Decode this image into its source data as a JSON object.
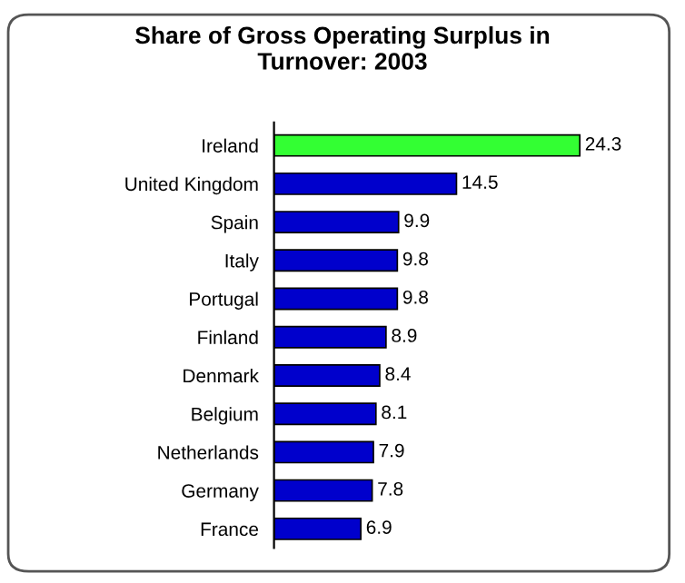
{
  "chart_data": {
    "type": "bar",
    "orientation": "horizontal",
    "title": "Share of Gross Operating Surplus in\nTurnover: 2003",
    "categories": [
      "Ireland",
      "United Kingdom",
      "Spain",
      "Italy",
      "Portugal",
      "Finland",
      "Denmark",
      "Belgium",
      "Netherlands",
      "Germany",
      "France"
    ],
    "values": [
      24.3,
      14.5,
      9.9,
      9.8,
      9.8,
      8.9,
      8.4,
      8.1,
      7.9,
      7.8,
      6.9
    ],
    "colors": [
      "#33ff33",
      "#0000cc",
      "#0000cc",
      "#0000cc",
      "#0000cc",
      "#0000cc",
      "#0000cc",
      "#0000cc",
      "#0000cc",
      "#0000cc",
      "#0000cc"
    ],
    "data_labels": true,
    "grid": false,
    "legend": false
  }
}
